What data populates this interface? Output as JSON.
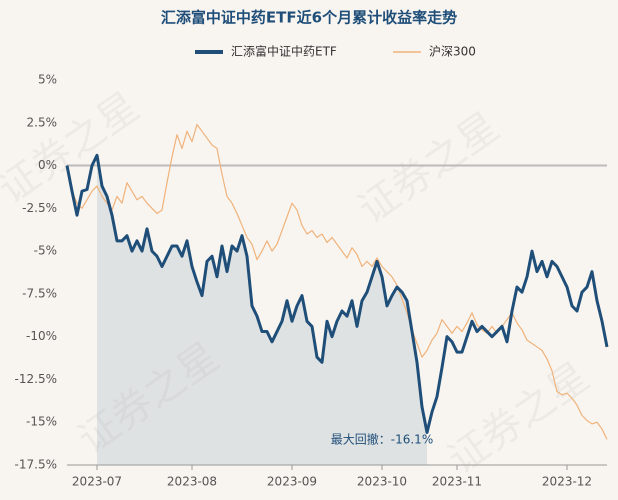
{
  "chart_data": {
    "type": "line",
    "title": "汇添富中证中药ETF近6个月累计收益率走势",
    "watermark": "证券之星",
    "annotation": "最大回撤：-16.1%",
    "legend": "top",
    "grid": false,
    "ylim": [
      -17.5,
      5
    ],
    "yticks": [
      {
        "value": 5,
        "label": "5%"
      },
      {
        "value": 2.5,
        "label": "2.5%"
      },
      {
        "value": 0,
        "label": "0%"
      },
      {
        "value": -2.5,
        "label": "-2.5%"
      },
      {
        "value": -5,
        "label": "-5%"
      },
      {
        "value": -7.5,
        "label": "-7.5%"
      },
      {
        "value": -10,
        "label": "-10%"
      },
      {
        "value": -12.5,
        "label": "-12.5%"
      },
      {
        "value": -15,
        "label": "-15%"
      },
      {
        "value": -17.5,
        "label": "-17.5%"
      }
    ],
    "categories": [
      null,
      null,
      null,
      null,
      null,
      null,
      "2023-07",
      null,
      null,
      null,
      null,
      null,
      null,
      null,
      null,
      null,
      null,
      null,
      null,
      null,
      null,
      null,
      null,
      null,
      null,
      "2023-08",
      null,
      null,
      null,
      null,
      null,
      null,
      null,
      null,
      null,
      null,
      null,
      null,
      null,
      null,
      null,
      null,
      null,
      null,
      null,
      "2023-09",
      null,
      null,
      null,
      null,
      null,
      null,
      null,
      null,
      null,
      null,
      null,
      null,
      null,
      null,
      null,
      null,
      null,
      "2023-10",
      null,
      null,
      null,
      null,
      null,
      null,
      null,
      null,
      null,
      null,
      null,
      null,
      null,
      null,
      "2023-11",
      null,
      null,
      null,
      null,
      null,
      null,
      null,
      null,
      null,
      null,
      null,
      null,
      null,
      null,
      null,
      null,
      null,
      null,
      null,
      null,
      null,
      "2023-12",
      null,
      null,
      null,
      null,
      null,
      null,
      null,
      null
    ],
    "series": [
      {
        "name": "汇添富中证中药ETF",
        "color": "#1f4e79",
        "values": [
          0,
          -1.5,
          -2.9,
          -1.5,
          -1.4,
          0,
          0.6,
          -1.2,
          -1.8,
          -2.9,
          -4.4,
          -4.4,
          -4.1,
          -5.0,
          -4.4,
          -5.0,
          -3.7,
          -5.0,
          -5.3,
          -5.9,
          -5.3,
          -4.7,
          -4.7,
          -5.3,
          -4.4,
          -5.9,
          -6.8,
          -7.6,
          -5.6,
          -5.3,
          -6.5,
          -4.7,
          -6.2,
          -4.7,
          -5.0,
          -4.1,
          -5.3,
          -8.2,
          -8.8,
          -9.7,
          -9.7,
          -10.3,
          -9.7,
          -9.1,
          -7.9,
          -9.1,
          -8.2,
          -7.6,
          -9.1,
          -9.4,
          -11.2,
          -11.5,
          -9.1,
          -10.0,
          -9.1,
          -8.5,
          -8.8,
          -7.9,
          -9.4,
          -7.9,
          -7.4,
          -6.5,
          -5.6,
          -6.5,
          -8.2,
          -7.6,
          -7.1,
          -7.4,
          -7.9,
          -9.7,
          -11.5,
          -14.1,
          -15.6,
          -14.4,
          -13.5,
          -11.8,
          -10.0,
          -10.3,
          -10.9,
          -10.9,
          -10.0,
          -9.1,
          -9.7,
          -9.4,
          -9.7,
          -10.0,
          -9.7,
          -9.4,
          -10.3,
          -8.5,
          -7.1,
          -7.4,
          -6.5,
          -5.0,
          -6.2,
          -5.6,
          -6.5,
          -5.6,
          -5.9,
          -6.5,
          -7.1,
          -8.2,
          -8.5,
          -7.4,
          -7.1,
          -6.2,
          -7.9,
          -9.1,
          -10.6
        ]
      },
      {
        "name": "沪深300",
        "color": "#f0b27a",
        "values": [
          0,
          -1.5,
          -2.2,
          -2.5,
          -2.0,
          -1.5,
          -1.2,
          -1.8,
          -2.2,
          -2.6,
          -1.8,
          -2.2,
          -1.0,
          -1.5,
          -2.0,
          -1.8,
          -2.2,
          -2.5,
          -2.8,
          -2.6,
          -1.0,
          0.5,
          1.8,
          1.0,
          2.0,
          1.4,
          2.4,
          2.0,
          1.6,
          1.2,
          1.0,
          -0.5,
          -1.8,
          -2.2,
          -2.8,
          -3.5,
          -4.2,
          -4.6,
          -5.5,
          -5.0,
          -4.4,
          -5.0,
          -4.6,
          -3.8,
          -3.0,
          -2.2,
          -2.6,
          -3.5,
          -4.0,
          -3.8,
          -4.2,
          -4.0,
          -4.5,
          -4.2,
          -4.6,
          -5.0,
          -5.4,
          -4.8,
          -5.2,
          -5.9,
          -5.6,
          -5.9,
          -5.4,
          -5.9,
          -6.2,
          -6.5,
          -7.0,
          -7.8,
          -8.6,
          -9.6,
          -10.4,
          -11.2,
          -10.8,
          -10.2,
          -9.8,
          -9.0,
          -9.4,
          -9.8,
          -9.4,
          -9.7,
          -9.2,
          -8.6,
          -9.3,
          -9.6,
          -9.8,
          -9.4,
          -9.8,
          -9.4,
          -9.0,
          -8.6,
          -9.2,
          -9.6,
          -10.2,
          -10.4,
          -10.6,
          -10.8,
          -11.3,
          -12.0,
          -13.2,
          -13.4,
          -13.3,
          -13.6,
          -14.0,
          -14.6,
          -14.9,
          -15.1,
          -15.0,
          -15.4,
          -16.0
        ]
      }
    ]
  }
}
